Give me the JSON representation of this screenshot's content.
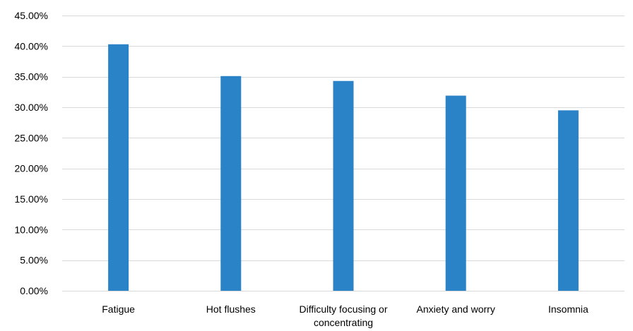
{
  "chart_data": {
    "type": "bar",
    "categories": [
      "Fatigue",
      "Hot flushes",
      "Difficulty focusing or concentrating",
      "Anxiety and worry",
      "Insomnia"
    ],
    "category_label_lines": [
      [
        "Fatigue"
      ],
      [
        "Hot flushes"
      ],
      [
        "Difficulty focusing or",
        "concentrating"
      ],
      [
        "Anxiety and worry"
      ],
      [
        "Insomnia"
      ]
    ],
    "values": [
      40.3,
      35.1,
      34.3,
      31.9,
      29.5
    ],
    "ylim": [
      0,
      45
    ],
    "yticks": [
      0,
      5,
      10,
      15,
      20,
      25,
      30,
      35,
      40,
      45
    ],
    "ytick_labels": [
      "0.00%",
      "5.00%",
      "10.00%",
      "15.00%",
      "20.00%",
      "25.00%",
      "30.00%",
      "35.00%",
      "40.00%",
      "45.00%"
    ],
    "grid": true,
    "title": "",
    "xlabel": "",
    "ylabel": "",
    "bar_color": "#2a83c7",
    "grid_color": "#d9d9d9"
  }
}
